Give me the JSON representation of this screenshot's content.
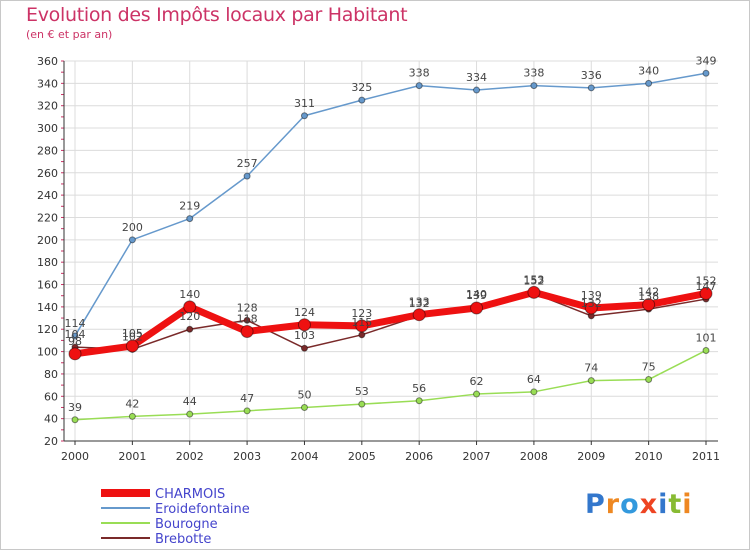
{
  "title": "Evolution des Impôts locaux par Habitant",
  "subtitle": "(en € et par an)",
  "logo": "Proxiti",
  "chart_data": {
    "type": "line",
    "title": "Evolution des Impôts locaux par Habitant",
    "subtitle": "(en € et par an)",
    "xlabel": "",
    "ylabel": "",
    "ylim": [
      20,
      360
    ],
    "yticks": [
      20,
      40,
      60,
      80,
      100,
      120,
      140,
      160,
      180,
      200,
      220,
      240,
      260,
      280,
      300,
      320,
      340,
      360
    ],
    "categories": [
      "2000",
      "2001",
      "2002",
      "2003",
      "2004",
      "2005",
      "2006",
      "2007",
      "2008",
      "2009",
      "2010",
      "2011"
    ],
    "grid": true,
    "legend_position": "bottom-left",
    "series": [
      {
        "name": "Brebotte",
        "color": "#7a2a2a",
        "values": [
          104,
          102,
          120,
          128,
          103,
          115,
          132,
          140,
          152,
          132,
          138,
          147
        ],
        "labels": [
          "104",
          "102",
          "120",
          "128",
          "103",
          "115",
          "132",
          "140",
          "152",
          "132",
          "138",
          "147"
        ]
      },
      {
        "name": "Bourogne",
        "color": "#99dd55",
        "values": [
          39,
          42,
          44,
          47,
          50,
          53,
          56,
          62,
          64,
          74,
          75,
          101
        ],
        "labels": [
          "39",
          "42",
          "44",
          "47",
          "50",
          "53",
          "56",
          "62",
          "64",
          "74",
          "75",
          "101"
        ]
      },
      {
        "name": "Eroidefontaine",
        "color": "#6699cc",
        "values": [
          114,
          200,
          219,
          257,
          311,
          325,
          338,
          334,
          338,
          336,
          340,
          349
        ],
        "labels": [
          "114",
          "200",
          "219",
          "257",
          "311",
          "325",
          "338",
          "334",
          "338",
          "336",
          "340",
          "349"
        ]
      },
      {
        "name": "CHARMOIS",
        "color": "#ee1111",
        "values": [
          98,
          105,
          140,
          118,
          124,
          123,
          133,
          139,
          153,
          139,
          142,
          152
        ],
        "labels": [
          "98",
          "105",
          "140",
          "118",
          "124",
          "123",
          "133",
          "139",
          "153",
          "139",
          "142",
          "152"
        ]
      }
    ]
  }
}
